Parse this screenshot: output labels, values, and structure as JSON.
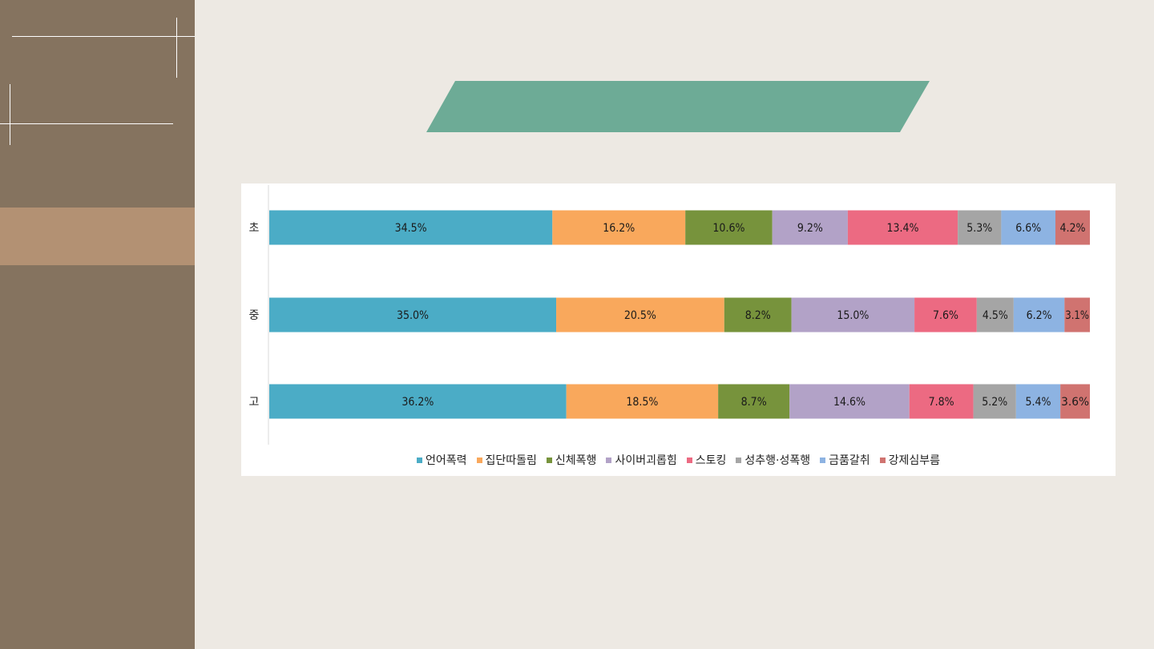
{
  "colors": {
    "sidebar": "#85735f",
    "sidebar_accent": "#b39173",
    "banner": "#6dab96",
    "background": "#ede9e3"
  },
  "chart_data": {
    "type": "bar",
    "orientation": "horizontal",
    "stacked": "100%",
    "categories": [
      "초",
      "중",
      "고"
    ],
    "series": [
      {
        "name": "언어폭력",
        "color": "#4bacc6",
        "values": [
          34.5,
          35.0,
          36.2
        ],
        "labels": [
          "34.5%",
          "35.0%",
          "36.2%"
        ]
      },
      {
        "name": "집단따돌림",
        "color": "#f9a85c",
        "values": [
          16.2,
          20.5,
          18.5
        ],
        "labels": [
          "16.2%",
          "20.5%",
          "18.5%"
        ]
      },
      {
        "name": "신체폭행",
        "color": "#77933c",
        "values": [
          10.6,
          8.2,
          8.7
        ],
        "labels": [
          "10.6%",
          "8.2%",
          "8.7%"
        ]
      },
      {
        "name": "사이버괴롭힘",
        "color": "#b2a2c7",
        "values": [
          9.2,
          15.0,
          14.6
        ],
        "labels": [
          "9.2%",
          "15.0%",
          "14.6%"
        ]
      },
      {
        "name": "스토킹",
        "color": "#ec6a82",
        "values": [
          13.4,
          7.6,
          7.8
        ],
        "labels": [
          "13.4%",
          "7.6%",
          "7.8%"
        ]
      },
      {
        "name": "성추행·성폭행",
        "color": "#a5a5a5",
        "values": [
          5.3,
          4.5,
          5.2
        ],
        "labels": [
          "5.3%",
          "4.5%",
          "5.2%"
        ]
      },
      {
        "name": "금품갈취",
        "color": "#8db3e2",
        "values": [
          6.6,
          6.2,
          5.4
        ],
        "labels": [
          "6.6%",
          "6.2%",
          "5.4%"
        ]
      },
      {
        "name": "강제심부름",
        "color": "#d07370",
        "values": [
          4.2,
          3.1,
          3.6
        ],
        "labels": [
          "4.2%",
          "3.1%",
          "3.6%"
        ]
      }
    ],
    "legend_position": "bottom",
    "grid": false
  }
}
